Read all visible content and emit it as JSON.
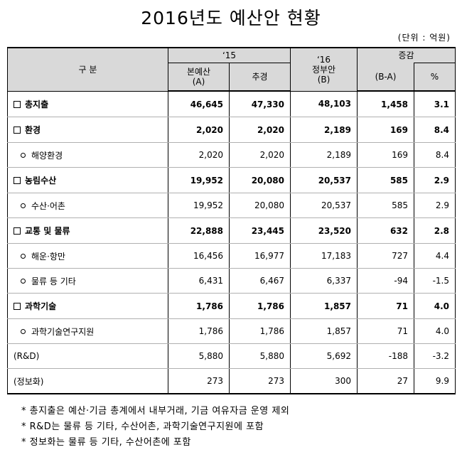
{
  "title": "2016년도 예산안 현황",
  "unit": "(단위 : 억원)",
  "header": {
    "category": "구 분",
    "y15": "‘15",
    "y16_line1": "‘16",
    "y16_line2": "정부안",
    "y16_line3": "(B)",
    "col_main_line1": "본예산",
    "col_main_line2": "(A)",
    "col_supp": "추경",
    "col_diff_line1": "증감",
    "col_diff_line2": "(B-A)",
    "col_pct": "%"
  },
  "rows": [
    {
      "label": "총지출",
      "marker": "square",
      "main": "46,645",
      "supp": "47,330",
      "gov": "48,103",
      "diff": "1,458",
      "pct": "3.1"
    },
    {
      "label": "환경",
      "marker": "square",
      "main": "2,020",
      "supp": "2,020",
      "gov": "2,189",
      "diff": "169",
      "pct": "8.4"
    },
    {
      "label": "해양환경",
      "marker": "circle",
      "main": "2,020",
      "supp": "2,020",
      "gov": "2,189",
      "diff": "169",
      "pct": "8.4"
    },
    {
      "label": "농림수산",
      "marker": "square",
      "main": "19,952",
      "supp": "20,080",
      "gov": "20,537",
      "diff": "585",
      "pct": "2.9"
    },
    {
      "label": "수산·어촌",
      "marker": "circle",
      "main": "19,952",
      "supp": "20,080",
      "gov": "20,537",
      "diff": "585",
      "pct": "2.9"
    },
    {
      "label": "교통 및 물류",
      "marker": "square",
      "main": "22,888",
      "supp": "23,445",
      "gov": "23,520",
      "diff": "632",
      "pct": "2.8"
    },
    {
      "label": "해운·항만",
      "marker": "circle",
      "main": "16,456",
      "supp": "16,977",
      "gov": "17,183",
      "diff": "727",
      "pct": "4.4"
    },
    {
      "label": "물류 등 기타",
      "marker": "circle",
      "main": "6,431",
      "supp": "6,467",
      "gov": "6,337",
      "diff": "-94",
      "pct": "-1.5"
    },
    {
      "label": "과학기술",
      "marker": "square",
      "main": "1,786",
      "supp": "1,786",
      "gov": "1,857",
      "diff": "71",
      "pct": "4.0"
    },
    {
      "label": "과학기술연구지원",
      "marker": "circle",
      "main": "1,786",
      "supp": "1,786",
      "gov": "1,857",
      "diff": "71",
      "pct": "4.0"
    },
    {
      "label": "(R&D)",
      "marker": "none",
      "main": "5,880",
      "supp": "5,880",
      "gov": "5,692",
      "diff": "-188",
      "pct": "-3.2"
    },
    {
      "label": "(정보화)",
      "marker": "none",
      "main": "273",
      "supp": "273",
      "gov": "300",
      "diff": "27",
      "pct": "9.9"
    }
  ],
  "notes": [
    "* 총지출은 예산·기금 총계에서 내부거래, 기금 여유자금 운영 제외",
    "* R&D는 물류 등 기타, 수산어촌, 과학기술연구지원에 포함",
    "* 정보화는 물류 등 기타, 수산어촌에 포함"
  ]
}
